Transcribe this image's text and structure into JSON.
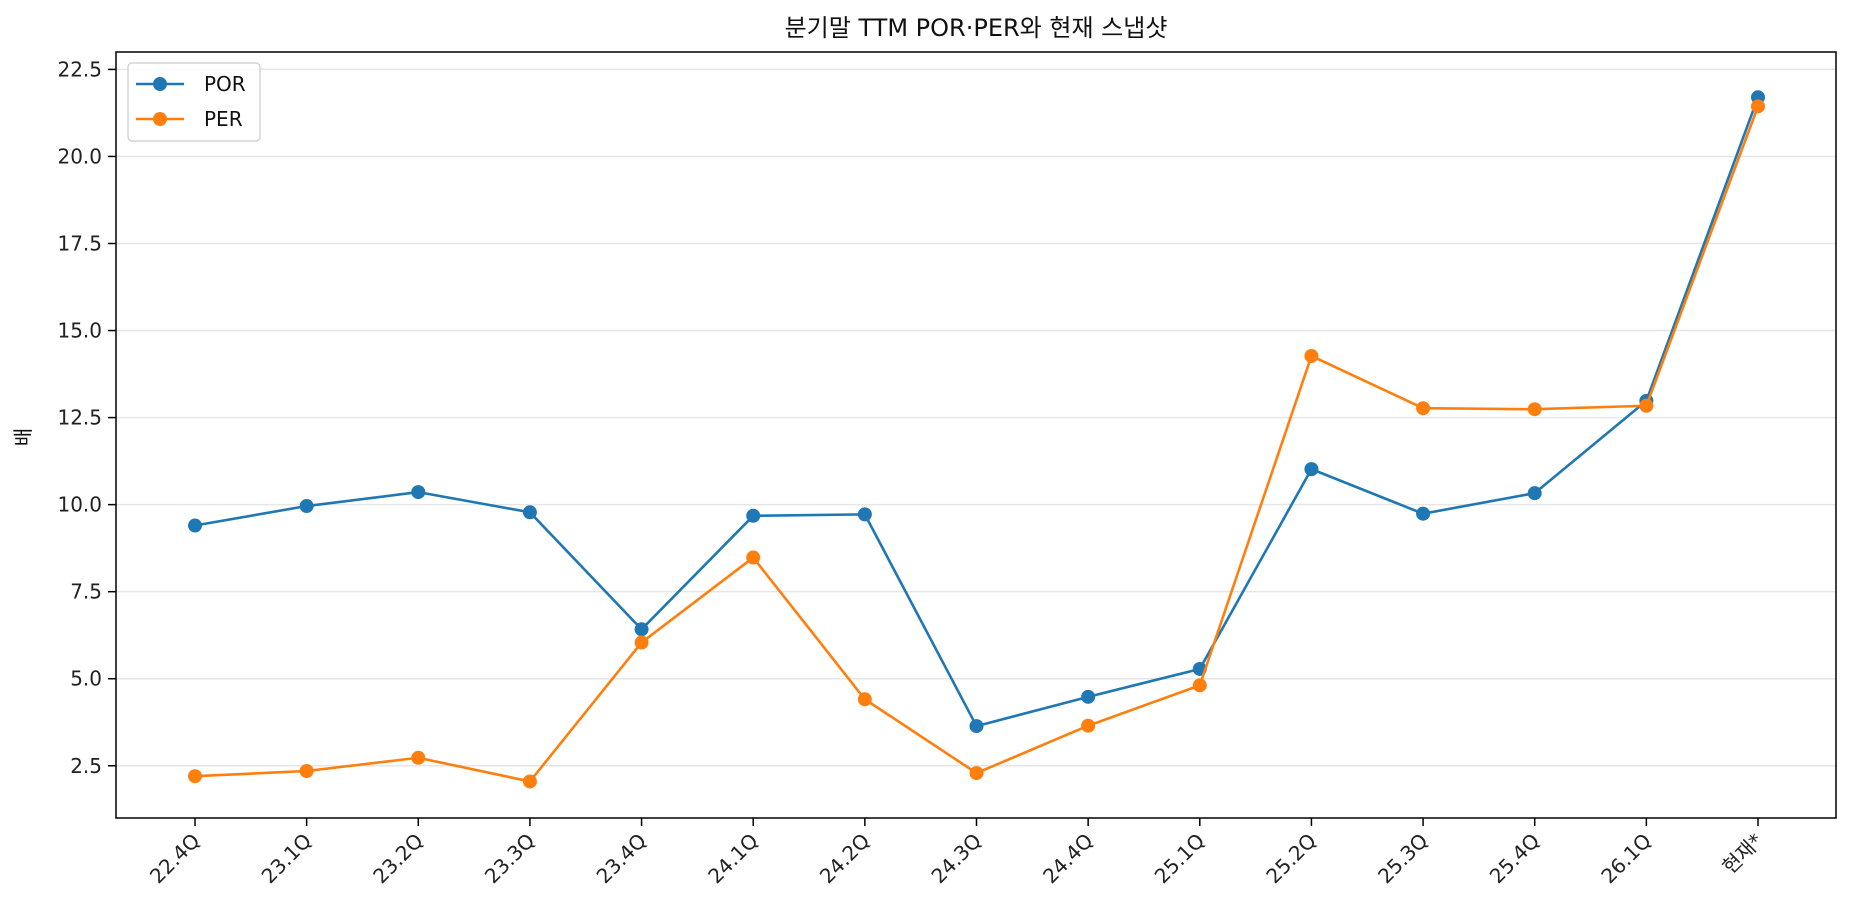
{
  "chart_data": {
    "type": "line",
    "title": "분기말 TTM POR·PER와 현재 스냅샷",
    "xlabel": "",
    "ylabel": "배",
    "categories": [
      "22.4Q",
      "23.1Q",
      "23.2Q",
      "23.3Q",
      "23.4Q",
      "24.1Q",
      "24.2Q",
      "24.3Q",
      "24.4Q",
      "25.1Q",
      "25.2Q",
      "25.3Q",
      "25.4Q",
      "26.1Q",
      "현재*"
    ],
    "series": [
      {
        "name": "POR",
        "color": "#1f77b4",
        "values": [
          9.4,
          9.96,
          10.36,
          9.78,
          6.42,
          9.68,
          9.72,
          3.64,
          4.48,
          5.28,
          11.02,
          9.74,
          10.33,
          12.98,
          21.7
        ]
      },
      {
        "name": "PER",
        "color": "#ff7f0e",
        "values": [
          2.2,
          2.35,
          2.73,
          2.05,
          6.04,
          8.48,
          4.41,
          2.29,
          3.65,
          4.81,
          14.27,
          12.77,
          12.74,
          12.84,
          21.44
        ]
      }
    ],
    "ylim": [
      1.0,
      23.0
    ],
    "yticks": [
      "2.5",
      "5.0",
      "7.5",
      "10.0",
      "12.5",
      "15.0",
      "17.5",
      "20.0",
      "22.5"
    ],
    "grid": "y",
    "legend_position": "top-left"
  }
}
